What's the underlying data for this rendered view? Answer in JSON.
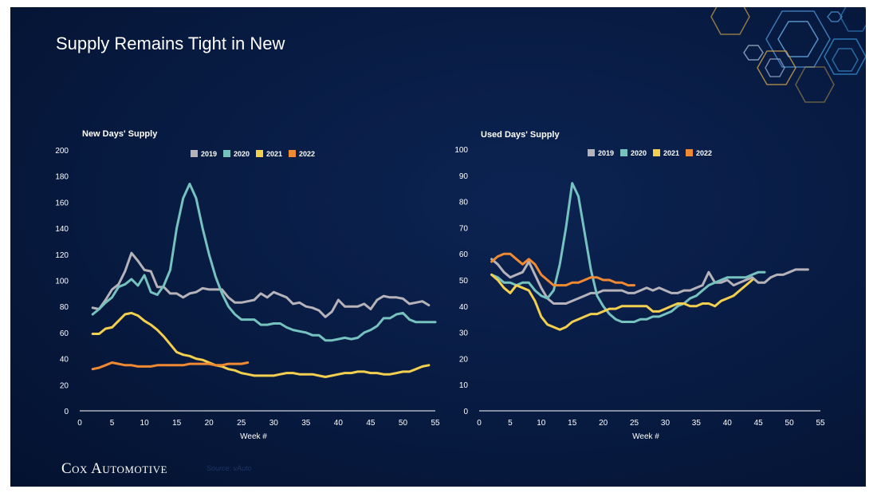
{
  "slide": {
    "title": "Supply Remains Tight in New",
    "brand": "Cox Automotive",
    "source": "Source: vAuto"
  },
  "colors": {
    "background": "#071a40",
    "series": {
      "2019": "#b6b2ba",
      "2020": "#76c2bf",
      "2021": "#f3cf4f",
      "2022": "#ef8a33"
    }
  },
  "chart_data": [
    {
      "type": "line",
      "title": "New Days' Supply",
      "xlabel": "Week #",
      "ylabel": "",
      "xlim": [
        0,
        55
      ],
      "ylim": [
        0,
        200
      ],
      "xticks": [
        0,
        5,
        10,
        15,
        20,
        25,
        30,
        35,
        40,
        45,
        50,
        55
      ],
      "yticks": [
        0,
        20,
        40,
        60,
        80,
        100,
        120,
        140,
        160,
        180,
        200
      ],
      "legend": "top",
      "grid": false,
      "series": [
        {
          "name": "2019",
          "color": "#b6b2ba",
          "x_start": 2,
          "values": [
            79,
            78,
            85,
            93,
            97,
            107,
            121,
            115,
            108,
            107,
            95,
            95,
            90,
            90,
            87,
            90,
            91,
            94,
            93,
            93,
            93,
            87,
            83,
            83,
            84,
            85,
            90,
            87,
            91,
            89,
            87,
            82,
            83,
            80,
            79,
            77,
            72,
            76,
            85,
            80,
            80,
            80,
            82,
            78,
            85,
            88,
            87,
            87,
            86,
            82,
            83,
            84,
            81
          ]
        },
        {
          "name": "2020",
          "color": "#76c2bf",
          "x_start": 2,
          "values": [
            74,
            78,
            83,
            87,
            95,
            97,
            101,
            96,
            104,
            91,
            89,
            96,
            108,
            140,
            163,
            174,
            163,
            140,
            120,
            103,
            90,
            80,
            74,
            70,
            70,
            70,
            66,
            66,
            67,
            67,
            64,
            62,
            61,
            60,
            58,
            58,
            54,
            54,
            55,
            56,
            55,
            56,
            60,
            62,
            65,
            71,
            71,
            74,
            75,
            70,
            68,
            68,
            68,
            68
          ]
        },
        {
          "name": "2021",
          "color": "#f3cf4f",
          "x_start": 2,
          "values": [
            59,
            59,
            63,
            64,
            69,
            74,
            75,
            73,
            69,
            66,
            62,
            57,
            51,
            45,
            43,
            42,
            40,
            39,
            37,
            35,
            34,
            32,
            31,
            29,
            28,
            27,
            27,
            27,
            27,
            28,
            29,
            29,
            28,
            28,
            28,
            27,
            26,
            27,
            28,
            29,
            29,
            30,
            30,
            29,
            29,
            28,
            28,
            29,
            30,
            30,
            32,
            34,
            35
          ]
        },
        {
          "name": "2022",
          "color": "#ef8a33",
          "x_start": 2,
          "values": [
            32,
            33,
            35,
            37,
            36,
            35,
            35,
            34,
            34,
            34,
            35,
            35,
            35,
            35,
            35,
            36,
            36,
            36,
            36,
            35,
            35,
            36,
            36,
            36,
            37
          ]
        }
      ]
    },
    {
      "type": "line",
      "title": "Used Days' Supply",
      "xlabel": "Week #",
      "ylabel": "",
      "xlim": [
        0,
        55
      ],
      "ylim": [
        0,
        100
      ],
      "xticks": [
        0,
        5,
        10,
        15,
        20,
        25,
        30,
        35,
        40,
        45,
        50,
        55
      ],
      "yticks": [
        0,
        10,
        20,
        30,
        40,
        50,
        60,
        70,
        80,
        90,
        100
      ],
      "legend": "top",
      "grid": false,
      "series": [
        {
          "name": "2019",
          "color": "#b6b2ba",
          "x_start": 2,
          "values": [
            58,
            56,
            53,
            51,
            52,
            53,
            57,
            52,
            47,
            43,
            41,
            41,
            41,
            42,
            43,
            44,
            45,
            45,
            46,
            46,
            46,
            46,
            45,
            45,
            46,
            47,
            46,
            47,
            46,
            45,
            45,
            46,
            46,
            47,
            48,
            53,
            49,
            49,
            50,
            48,
            49,
            50,
            51,
            49,
            49,
            51,
            52,
            52,
            53,
            54,
            54,
            54
          ]
        },
        {
          "name": "2020",
          "color": "#76c2bf",
          "x_start": 2,
          "values": [
            52,
            51,
            49,
            49,
            48,
            49,
            49,
            46,
            44,
            43,
            46,
            56,
            70,
            87,
            82,
            68,
            54,
            44,
            40,
            37,
            35,
            34,
            34,
            34,
            35,
            35,
            36,
            36,
            37,
            38,
            40,
            41,
            43,
            44,
            46,
            48,
            49,
            50,
            51,
            51,
            51,
            51,
            52,
            53,
            53
          ]
        },
        {
          "name": "2021",
          "color": "#f3cf4f",
          "x_start": 2,
          "values": [
            52,
            50,
            47,
            45,
            48,
            47,
            46,
            42,
            36,
            33,
            32,
            31,
            32,
            34,
            35,
            36,
            37,
            37,
            38,
            39,
            39,
            40,
            40,
            40,
            40,
            40,
            38,
            38,
            39,
            40,
            41,
            41,
            40,
            40,
            41,
            41,
            40,
            42,
            43,
            44,
            46,
            48,
            50
          ]
        },
        {
          "name": "2022",
          "color": "#ef8a33",
          "x_start": 2,
          "values": [
            57,
            59,
            60,
            60,
            58,
            56,
            58,
            56,
            52,
            50,
            48,
            48,
            48,
            49,
            49,
            50,
            51,
            51,
            50,
            50,
            49,
            49,
            48,
            48
          ]
        }
      ]
    }
  ]
}
